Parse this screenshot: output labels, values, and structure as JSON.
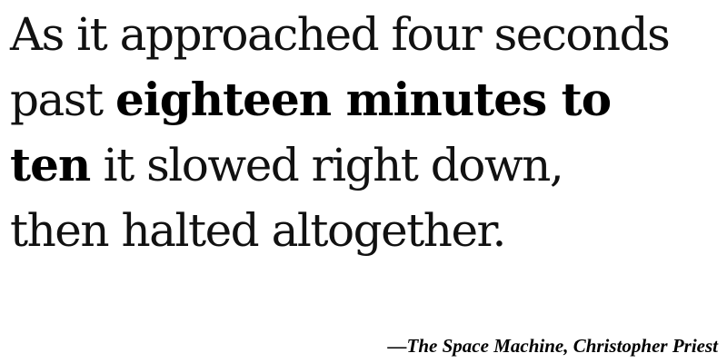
{
  "quote": {
    "line1": "As it approached four seconds",
    "line2_start": "past ",
    "line2_bold": "eighteen minutes to",
    "line3_bold": "ten",
    "line3_end": " it slowed right down,",
    "line4": "then halted altogether."
  },
  "attribution": {
    "text": "—The Space Machine, Christopher Priest"
  }
}
